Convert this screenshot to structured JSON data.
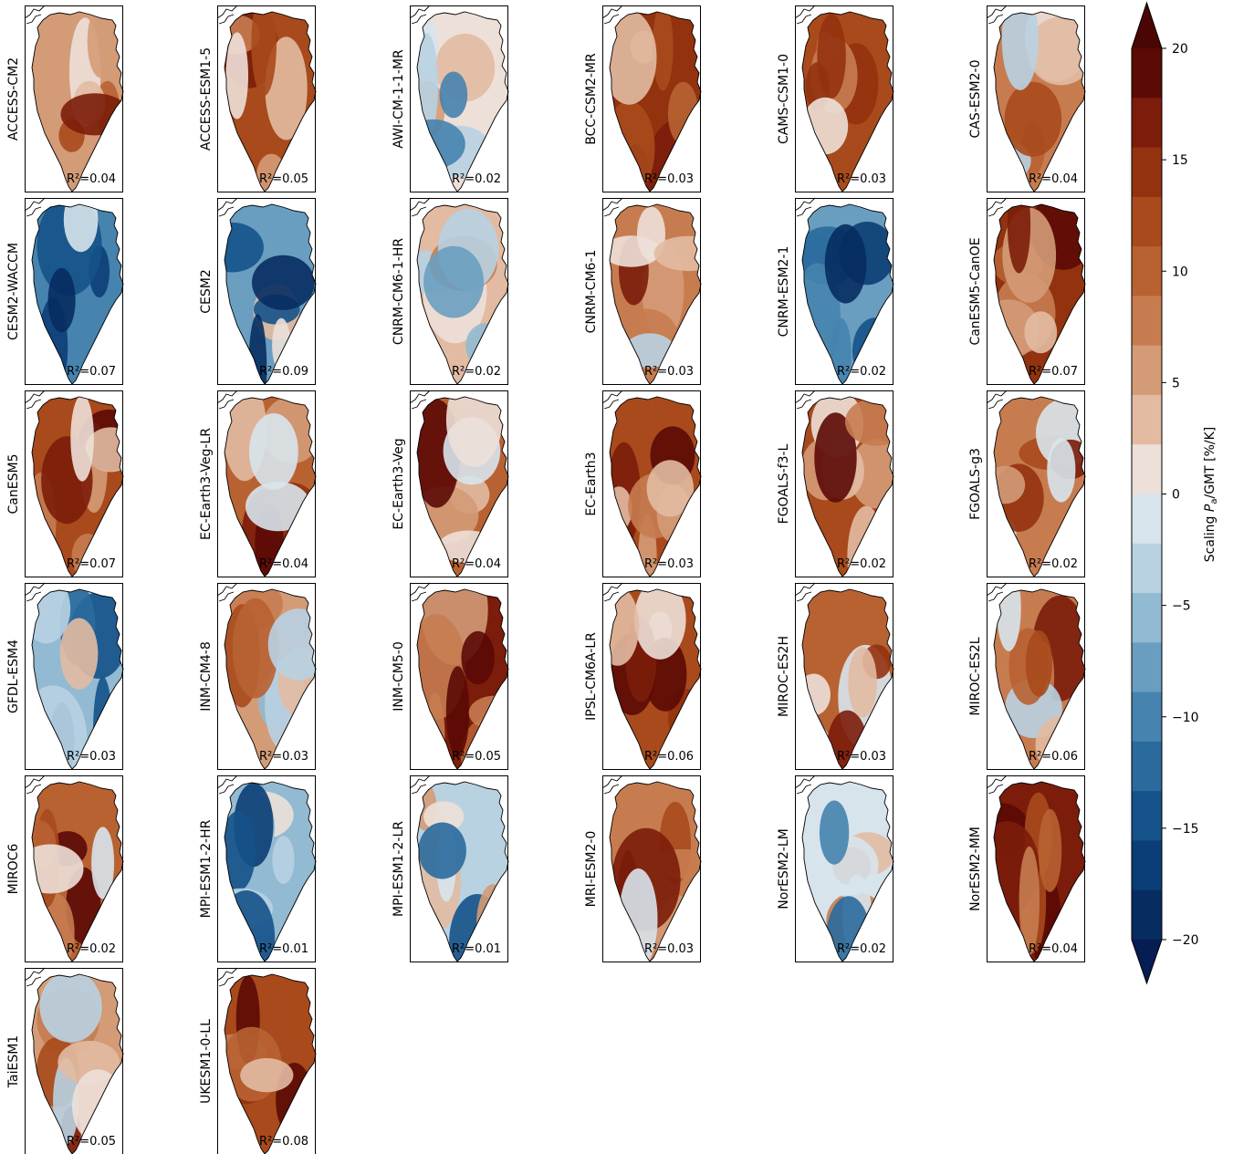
{
  "panels": [
    {
      "model": "ACCESS-CM2",
      "r2": "R²=0.04"
    },
    {
      "model": "ACCESS-ESM1-5",
      "r2": "R²=0.05"
    },
    {
      "model": "AWI-CM-1-1-MR",
      "r2": "R²=0.02"
    },
    {
      "model": "BCC-CSM2-MR",
      "r2": "R²=0.03"
    },
    {
      "model": "CAMS-CSM1-0",
      "r2": "R²=0.03"
    },
    {
      "model": "CAS-ESM2-0",
      "r2": "R²=0.04"
    },
    {
      "model": "CESM2-WACCM",
      "r2": "R²=0.07"
    },
    {
      "model": "CESM2",
      "r2": "R²=0.09"
    },
    {
      "model": "CNRM-CM6-1-HR",
      "r2": "R²=0.02"
    },
    {
      "model": "CNRM-CM6-1",
      "r2": "R²=0.03"
    },
    {
      "model": "CNRM-ESM2-1",
      "r2": "R²=0.02"
    },
    {
      "model": "CanESM5-CanOE",
      "r2": "R²=0.07"
    },
    {
      "model": "CanESM5",
      "r2": "R²=0.07"
    },
    {
      "model": "EC-Earth3-Veg-LR",
      "r2": "R²=0.04"
    },
    {
      "model": "EC-Earth3-Veg",
      "r2": "R²=0.04"
    },
    {
      "model": "EC-Earth3",
      "r2": "R²=0.03"
    },
    {
      "model": "FGOALS-f3-L",
      "r2": "R²=0.02"
    },
    {
      "model": "FGOALS-g3",
      "r2": "R²=0.02"
    },
    {
      "model": "GFDL-ESM4",
      "r2": "R²=0.03"
    },
    {
      "model": "INM-CM4-8",
      "r2": "R²=0.03"
    },
    {
      "model": "INM-CM5-0",
      "r2": "R²=0.05"
    },
    {
      "model": "IPSL-CM6A-LR",
      "r2": "R²=0.06"
    },
    {
      "model": "MIROC-ES2H",
      "r2": "R²=0.03"
    },
    {
      "model": "MIROC-ES2L",
      "r2": "R²=0.06"
    },
    {
      "model": "MIROC6",
      "r2": "R²=0.02"
    },
    {
      "model": "MPI-ESM1-2-HR",
      "r2": "R²=0.01"
    },
    {
      "model": "MPI-ESM1-2-LR",
      "r2": "R²=0.01"
    },
    {
      "model": "MRI-ESM2-0",
      "r2": "R²=0.03"
    },
    {
      "model": "NorESM2-LM",
      "r2": "R²=0.02"
    },
    {
      "model": "NorESM2-MM",
      "r2": "R²=0.04"
    },
    {
      "model": "TaiESM1",
      "r2": "R²=0.05"
    },
    {
      "model": "UKESM1-0-LL",
      "r2": "R²=0.08"
    }
  ],
  "colorbar": {
    "label_prefix": "Scaling ",
    "label_symbol": "P",
    "label_subscript": "a",
    "label_suffix": "/GMT [%/K]",
    "min": -20,
    "max": 20,
    "step": 2.5,
    "extend": "both",
    "tick_values": [
      20,
      15,
      10,
      5,
      0,
      -5,
      -10,
      -15,
      -20
    ],
    "tick_labels": [
      "20",
      "15",
      "10",
      "5",
      "0",
      "−5",
      "−10",
      "−15",
      "−20"
    ],
    "colors": [
      "#5b0a05",
      "#7b1d0a",
      "#93320f",
      "#a84a1c",
      "#b86232",
      "#c77c50",
      "#d49b77",
      "#e2bba2",
      "#ede0d8",
      "#d8e4ec",
      "#b8d2e2",
      "#92bad2",
      "#6a9ec0",
      "#4683ae",
      "#2a6a9d",
      "#15528a",
      "#0b3e76",
      "#072c60"
    ]
  }
}
